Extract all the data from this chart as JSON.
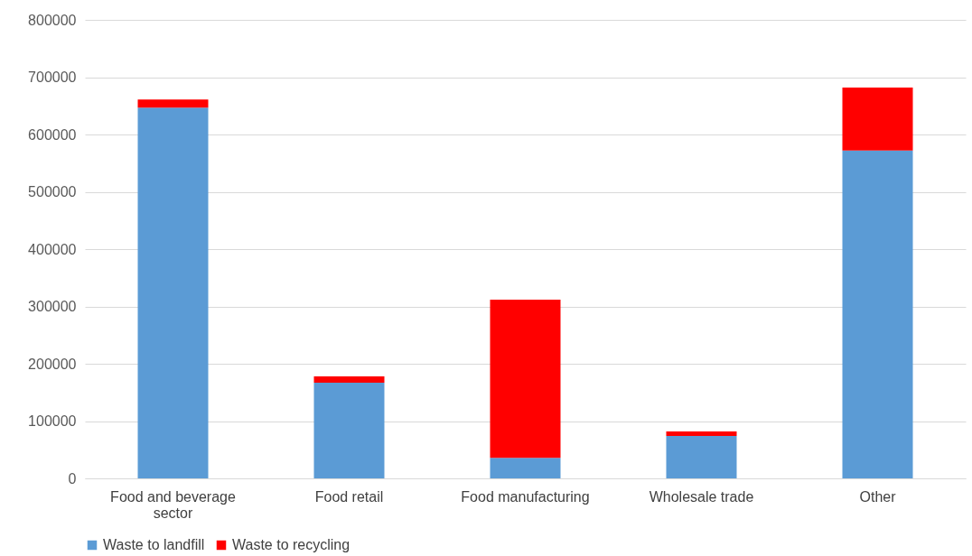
{
  "chart_data": {
    "type": "bar",
    "stacked": true,
    "categories": [
      "Food and beverage sector",
      "Food retail",
      "Food manufacturing",
      "Wholesale trade",
      "Other"
    ],
    "series": [
      {
        "name": "Waste to landfill",
        "color": "#5b9bd5",
        "values": [
          647000,
          167000,
          36000,
          74000,
          572000
        ]
      },
      {
        "name": "Waste to recycling",
        "color": "#ff0000",
        "values": [
          14000,
          11000,
          276000,
          8000,
          110000
        ]
      }
    ],
    "ylim": [
      0,
      800000
    ],
    "yticks": [
      0,
      100000,
      200000,
      300000,
      400000,
      500000,
      600000,
      700000,
      800000
    ],
    "grid": "y",
    "legend": "bottom"
  }
}
